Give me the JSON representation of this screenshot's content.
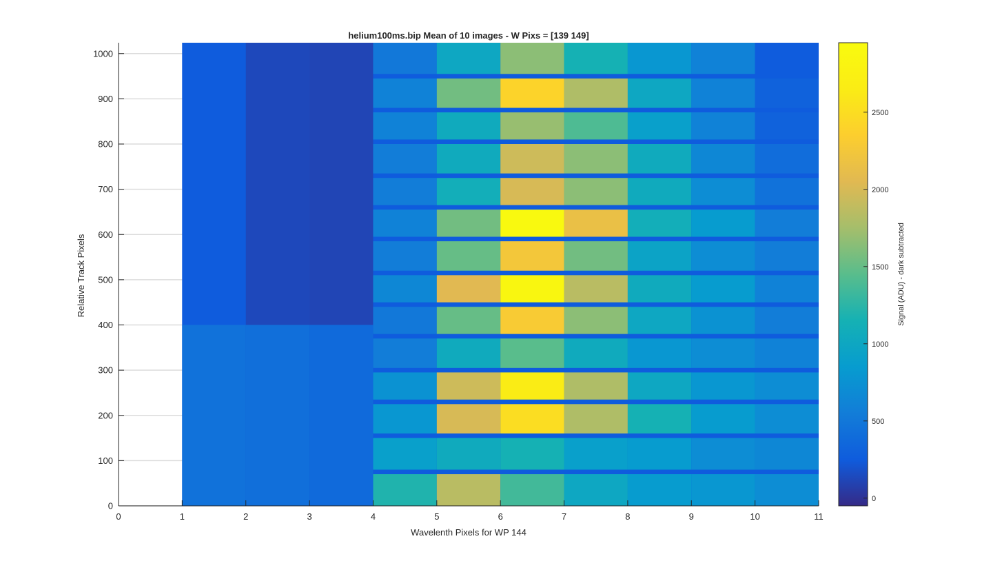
{
  "chart_data": {
    "type": "heatmap",
    "title": "helium100ms.bip  Mean of 10 images - W Pixs = [139  149]",
    "xlabel": "Wavelenth Pixels for WP 144",
    "ylabel": "Relative Track Pixels",
    "colorbar_label": "Signal (ADU) - dark subtracted",
    "xlim": [
      0,
      11
    ],
    "ylim": [
      0,
      1024
    ],
    "x_ticks": [
      0,
      1,
      2,
      3,
      4,
      5,
      6,
      7,
      8,
      9,
      10,
      11
    ],
    "y_ticks": [
      0,
      100,
      200,
      300,
      400,
      500,
      600,
      700,
      800,
      900,
      1000
    ],
    "clim": [
      -50,
      2950
    ],
    "colorbar_ticks": [
      0,
      500,
      1000,
      1500,
      2000,
      2500
    ],
    "colormap": "parula",
    "grid": "horizontal",
    "x_columns": [
      1,
      2,
      3,
      4,
      5,
      6,
      7,
      8,
      9,
      10
    ],
    "column_bands": [
      {
        "y_start": 0,
        "y_end": 1024,
        "values": [
          250,
          130,
          110
        ]
      },
      {
        "y_start": 0,
        "y_end": 400,
        "values": [
          450,
          420,
          380
        ]
      }
    ],
    "spots": [
      {
        "y_start": 0,
        "y_end": 70,
        "values": [
          1200,
          1850,
          1350,
          1000,
          850,
          800,
          700
        ]
      },
      {
        "y_start": 80,
        "y_end": 150,
        "values": [
          900,
          1050,
          1150,
          900,
          850,
          700,
          650
        ]
      },
      {
        "y_start": 160,
        "y_end": 225,
        "values": [
          800,
          2000,
          2500,
          1800,
          1150,
          850,
          700
        ]
      },
      {
        "y_start": 235,
        "y_end": 295,
        "values": [
          750,
          1950,
          2650,
          1800,
          1000,
          800,
          700
        ]
      },
      {
        "y_start": 305,
        "y_end": 370,
        "values": [
          550,
          1050,
          1450,
          1050,
          800,
          700,
          600
        ]
      },
      {
        "y_start": 380,
        "y_end": 440,
        "values": [
          500,
          1500,
          2300,
          1650,
          1000,
          750,
          550
        ]
      },
      {
        "y_start": 450,
        "y_end": 510,
        "values": [
          650,
          2050,
          2850,
          1850,
          1050,
          850,
          600
        ]
      },
      {
        "y_start": 520,
        "y_end": 585,
        "values": [
          550,
          1500,
          2250,
          1550,
          950,
          700,
          550
        ]
      },
      {
        "y_start": 595,
        "y_end": 655,
        "values": [
          600,
          1550,
          2900,
          2150,
          1100,
          850,
          550
        ]
      },
      {
        "y_start": 665,
        "y_end": 725,
        "values": [
          550,
          1100,
          2000,
          1650,
          1050,
          700,
          450
        ]
      },
      {
        "y_start": 735,
        "y_end": 800,
        "values": [
          550,
          1050,
          1950,
          1650,
          1050,
          650,
          400
        ]
      },
      {
        "y_start": 810,
        "y_end": 870,
        "values": [
          600,
          1050,
          1700,
          1400,
          900,
          600,
          300
        ]
      },
      {
        "y_start": 880,
        "y_end": 945,
        "values": [
          600,
          1550,
          2400,
          1800,
          1000,
          600,
          300
        ]
      },
      {
        "y_start": 955,
        "y_end": 1024,
        "values": [
          500,
          1000,
          1650,
          1150,
          800,
          600,
          250
        ]
      }
    ]
  }
}
